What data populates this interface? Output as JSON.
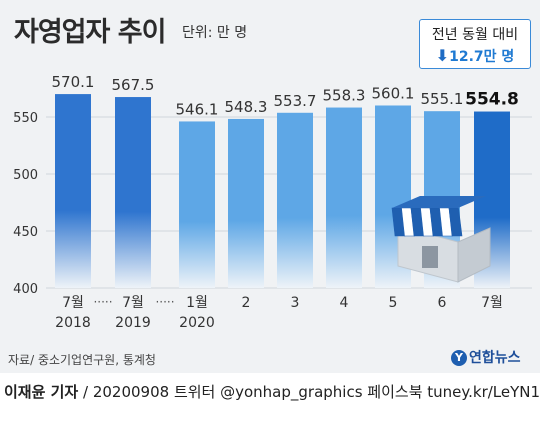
{
  "header": {
    "title": "자영업자 추이",
    "unit": "단위: 만 명"
  },
  "callout": {
    "line1": "전년 동월 대비",
    "arrow": "⬇",
    "change": "12.7만 명"
  },
  "chart_data": {
    "type": "bar",
    "categories": [
      "7월\n2018",
      "7월\n2019",
      "1월\n2020",
      "2",
      "3",
      "4",
      "5",
      "6",
      "7월"
    ],
    "values": [
      570.1,
      567.5,
      546.1,
      548.3,
      553.7,
      558.3,
      560.1,
      555.1,
      554.8
    ],
    "ylim": [
      400,
      580
    ],
    "yticks": [
      400,
      450,
      500,
      550
    ],
    "axis_break_marker": "·····",
    "highlight_last": true,
    "colors": {
      "year_bar": "#2f75cf",
      "month_bar": "#5ea7e6",
      "last_bar": "#1f6cc8",
      "grid": "#cfd5db"
    }
  },
  "source": "자료/ 중소기업연구원, 통계청",
  "logo": "연합뉴스",
  "footer": {
    "author": "이재윤 기자",
    "rest": " / 20200908   트위터 @yonhap_graphics  페이스북 tuney.kr/LeYN1"
  }
}
